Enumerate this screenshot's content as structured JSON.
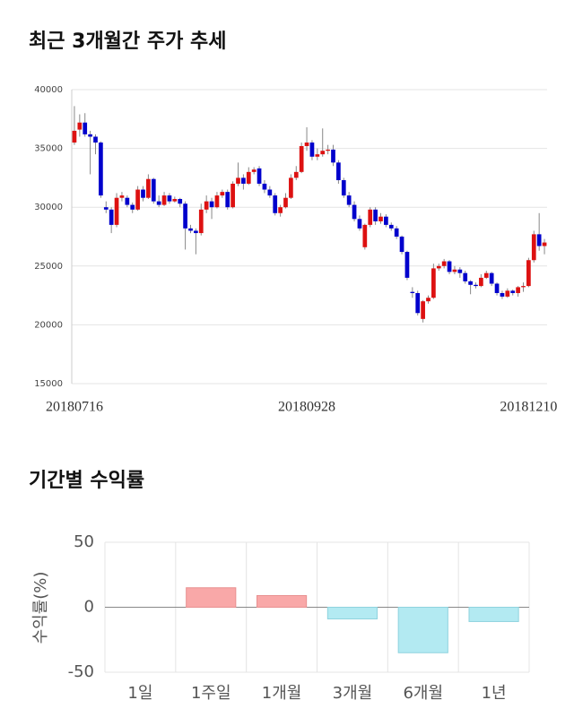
{
  "chart_data": [
    {
      "type": "candlestick",
      "title": "최근 3개월간 주가 추세",
      "categories": [
        "20180716",
        null,
        null,
        null,
        null,
        null,
        null,
        null,
        null,
        null,
        null,
        null,
        null,
        null,
        null,
        null,
        null,
        null,
        null,
        null,
        null,
        null,
        null,
        null,
        null,
        null,
        null,
        null,
        null,
        null,
        null,
        null,
        null,
        null,
        null,
        null,
        null,
        null,
        null,
        null,
        null,
        null,
        null,
        null,
        "20180928",
        null,
        null,
        null,
        null,
        null,
        null,
        null,
        null,
        null,
        null,
        null,
        null,
        null,
        null,
        null,
        null,
        null,
        null,
        null,
        null,
        null,
        null,
        null,
        null,
        null,
        null,
        null,
        null,
        null,
        null,
        null,
        null,
        null,
        null,
        null,
        null,
        null,
        null,
        null,
        null,
        null,
        "20181210",
        null,
        null,
        null
      ],
      "open": [
        35500,
        36600,
        37200,
        36200,
        36000,
        35500,
        30000,
        29800,
        28500,
        30800,
        30800,
        30200,
        29800,
        31500,
        30800,
        32400,
        30500,
        30200,
        31000,
        30500,
        30700,
        30300,
        28200,
        28000,
        27800,
        29800,
        30500,
        30000,
        31000,
        31300,
        30000,
        32000,
        32500,
        32000,
        33000,
        33300,
        32000,
        31500,
        31000,
        29500,
        30000,
        30800,
        32500,
        33000,
        35200,
        35500,
        34300,
        34500,
        34800,
        34900,
        33800,
        32300,
        31000,
        30200,
        29000,
        26600,
        28500,
        29800,
        28800,
        29200,
        28500,
        28200,
        27500,
        26200,
        22800,
        22700,
        20500,
        22000,
        22300,
        24800,
        25000,
        25400,
        24500,
        24700,
        24400,
        23700,
        23400,
        23300,
        24000,
        24400,
        23500,
        22700,
        22400,
        22900,
        22700,
        23200,
        23300,
        25500,
        27700,
        26700
      ],
      "high": [
        38600,
        37900,
        38000,
        36500,
        36200,
        35600,
        30500,
        30000,
        31200,
        31300,
        31000,
        30400,
        31800,
        31800,
        32800,
        32500,
        31000,
        31300,
        31200,
        30900,
        30800,
        30500,
        28500,
        28200,
        30300,
        31000,
        30800,
        31300,
        31500,
        31500,
        32200,
        33800,
        32800,
        33400,
        33400,
        33500,
        32300,
        31800,
        31200,
        30200,
        31200,
        32800,
        33500,
        35500,
        36800,
        35700,
        35000,
        36700,
        35300,
        35300,
        34000,
        32500,
        31300,
        30500,
        29300,
        28600,
        30000,
        30000,
        29500,
        29400,
        28700,
        28400,
        27600,
        26300,
        23200,
        22900,
        22100,
        22500,
        25200,
        25200,
        25600,
        25500,
        25000,
        24900,
        24600,
        23800,
        23600,
        24300,
        24600,
        24500,
        23600,
        22900,
        23100,
        23000,
        23300,
        23600,
        25700,
        28000,
        29500,
        27300
      ],
      "low": [
        35300,
        36000,
        36000,
        32800,
        34500,
        30800,
        29500,
        27800,
        28300,
        30500,
        30000,
        29500,
        29700,
        30500,
        30700,
        30300,
        30000,
        30100,
        30300,
        30400,
        30000,
        26400,
        27800,
        26000,
        27600,
        29500,
        29000,
        29900,
        30800,
        29800,
        29900,
        31800,
        31500,
        31900,
        32800,
        31800,
        31200,
        30800,
        29300,
        29200,
        29900,
        30700,
        32300,
        32900,
        34800,
        34000,
        34000,
        34300,
        34500,
        33500,
        32000,
        30800,
        30000,
        28800,
        28000,
        26400,
        28300,
        28500,
        28600,
        28300,
        28000,
        27300,
        26000,
        23800,
        22300,
        20800,
        20200,
        21800,
        22200,
        24600,
        24800,
        24300,
        24300,
        24000,
        23500,
        22600,
        23100,
        23200,
        23900,
        23300,
        22500,
        22200,
        22300,
        22500,
        22400,
        22800,
        23200,
        25300,
        26300,
        26000
      ],
      "close": [
        36500,
        37200,
        36200,
        36000,
        35500,
        31000,
        29800,
        28500,
        30800,
        31000,
        30200,
        29800,
        31500,
        30800,
        32400,
        30500,
        30200,
        31000,
        30500,
        30700,
        30300,
        28200,
        28000,
        27800,
        29800,
        30500,
        30000,
        31000,
        31300,
        30000,
        32000,
        32500,
        32000,
        33000,
        33200,
        32000,
        31500,
        31000,
        29500,
        30000,
        30800,
        32500,
        33000,
        35200,
        35500,
        34300,
        34500,
        34800,
        34900,
        33800,
        32300,
        31000,
        30200,
        29000,
        28200,
        28500,
        29800,
        28800,
        29200,
        28500,
        28200,
        27500,
        26200,
        24000,
        22700,
        21000,
        22000,
        22300,
        24800,
        25000,
        25400,
        24500,
        24700,
        24400,
        23700,
        23400,
        23300,
        24000,
        24400,
        23500,
        22700,
        22400,
        22900,
        22700,
        23200,
        23300,
        25500,
        27700,
        26700,
        27000
      ],
      "up_color": "#dd1111",
      "down_color": "#0000cc",
      "ylim": [
        15000,
        40000
      ],
      "yticks": [
        15000,
        20000,
        25000,
        30000,
        35000,
        40000
      ],
      "grid": true
    },
    {
      "type": "bar",
      "title": "기간별 수익률",
      "y_label": "수익률(%)",
      "categories": [
        "1일",
        "1주일",
        "1개월",
        "3개월",
        "6개월",
        "1년"
      ],
      "values": [
        0,
        15,
        9,
        -9,
        -35,
        -11
      ],
      "positive_color": "#f9a8a8",
      "negative_color": "#b3eaf2",
      "ylim": [
        -50,
        50
      ],
      "yticks": [
        50,
        0,
        -50
      ],
      "grid": true
    }
  ]
}
